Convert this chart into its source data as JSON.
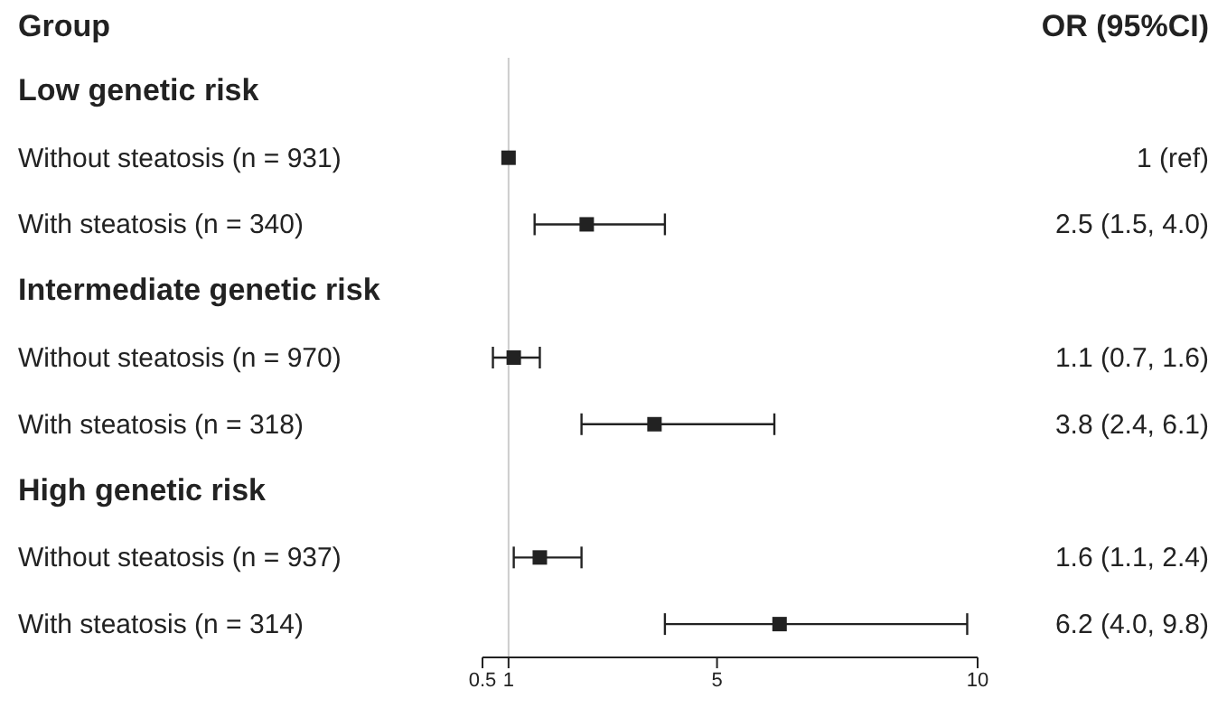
{
  "chart_data": {
    "type": "scatter",
    "orientation": "horizontal",
    "ylabel": "Group",
    "annotations": [
      "OR (95%CI)"
    ],
    "categories": [
      "Low genetic risk",
      "Without steatosis (n = 931)",
      "With steatosis (n = 340)",
      "Intermediate genetic risk",
      "Without steatosis (n = 970)",
      "With steatosis (n = 318)",
      "High genetic risk",
      "Without steatosis (n = 937)",
      "With steatosis (n = 314)"
    ],
    "values": [
      null,
      1,
      2.5,
      null,
      1.1,
      3.8,
      null,
      1.6,
      6.2
    ],
    "errors": [
      null,
      null,
      [
        1.5,
        4.0
      ],
      null,
      [
        0.7,
        1.6
      ],
      [
        2.4,
        6.1
      ],
      null,
      [
        1.1,
        2.4
      ],
      [
        4.0,
        9.8
      ]
    ],
    "value_labels": [
      null,
      "1 (ref)",
      "2.5 (1.5, 4.0)",
      null,
      "1.1 (0.7, 1.6)",
      "3.8 (2.4, 6.1)",
      null,
      "1.6 (1.1, 2.4)",
      "6.2 (4.0, 9.8)"
    ],
    "color": "#222222",
    "marker": "square",
    "xlim": [
      0.5,
      10
    ],
    "xticks": [
      0.5,
      1,
      5,
      10
    ],
    "ref_lines": [
      {
        "axis": "x",
        "value": 1,
        "color": "#cccccc"
      }
    ]
  }
}
